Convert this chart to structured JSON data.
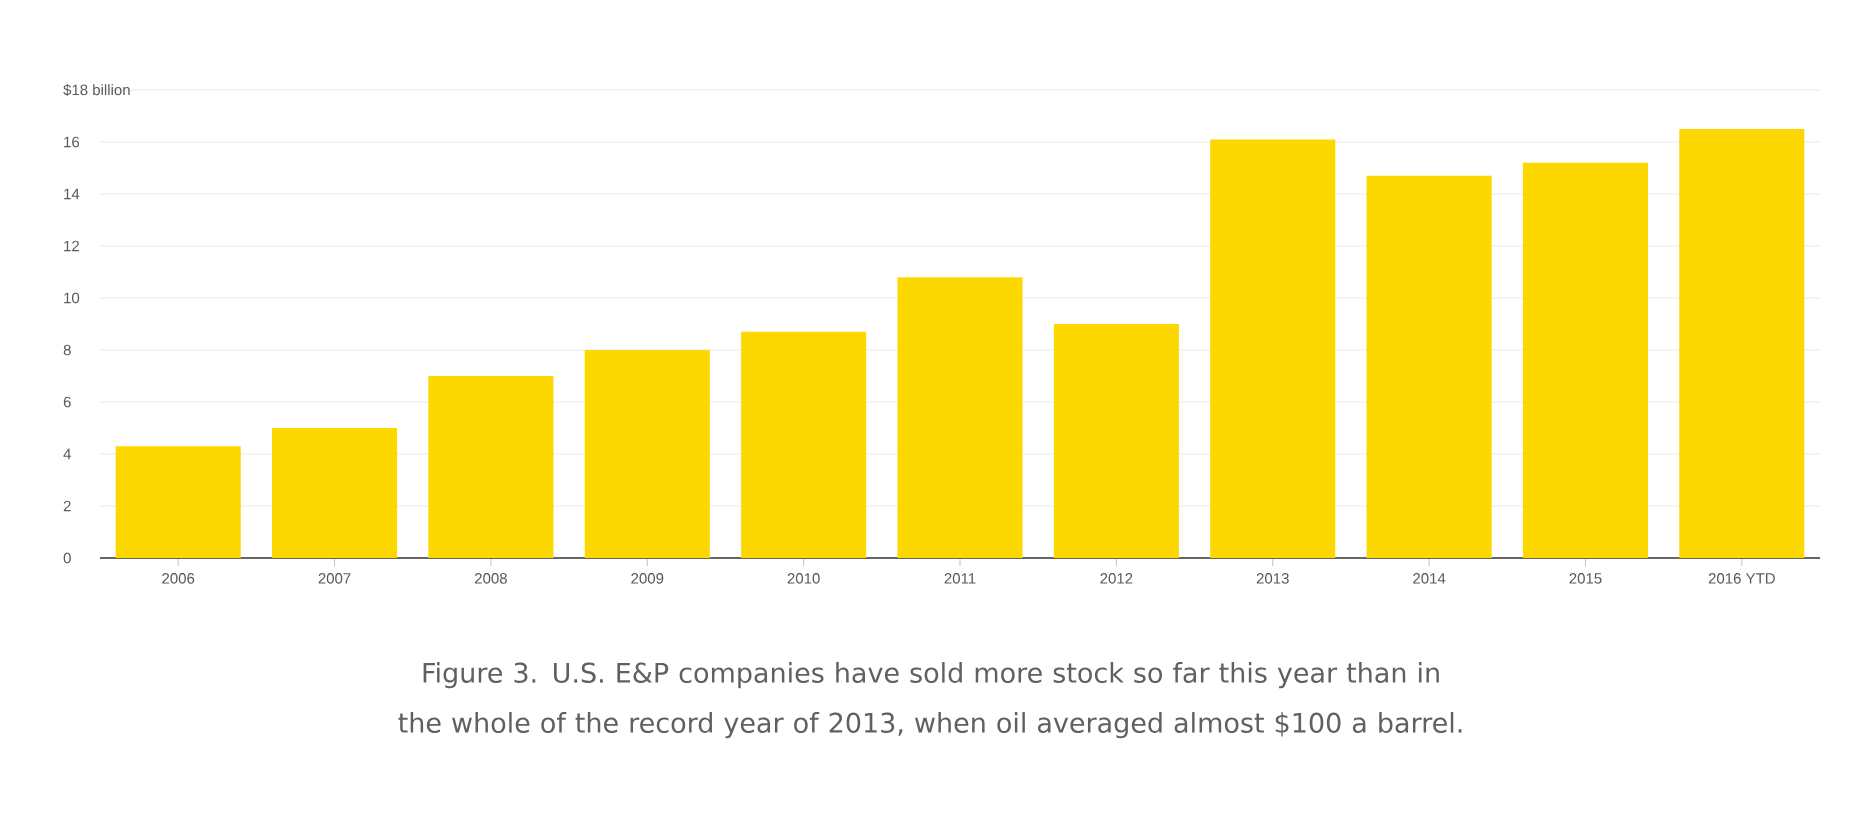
{
  "chart_data": {
    "type": "bar",
    "categories": [
      "2006",
      "2007",
      "2008",
      "2009",
      "2010",
      "2011",
      "2012",
      "2013",
      "2014",
      "2015",
      "2016 YTD"
    ],
    "values": [
      4.3,
      5.0,
      7.0,
      8.0,
      8.7,
      10.8,
      9.0,
      16.1,
      14.7,
      15.2,
      16.5
    ],
    "color": "#fcd800",
    "ylim": [
      0,
      18
    ],
    "yticks": [
      0,
      2,
      4,
      6,
      8,
      10,
      12,
      14,
      16,
      {
        "value": 18,
        "label": "$18 billion"
      }
    ],
    "grid": "y",
    "annotations": [
      "Figure 3. U.S. E&P companies have sold more stock so far this year than in the whole of the record year of 2013, when oil averaged almost $100 a barrel."
    ]
  }
}
